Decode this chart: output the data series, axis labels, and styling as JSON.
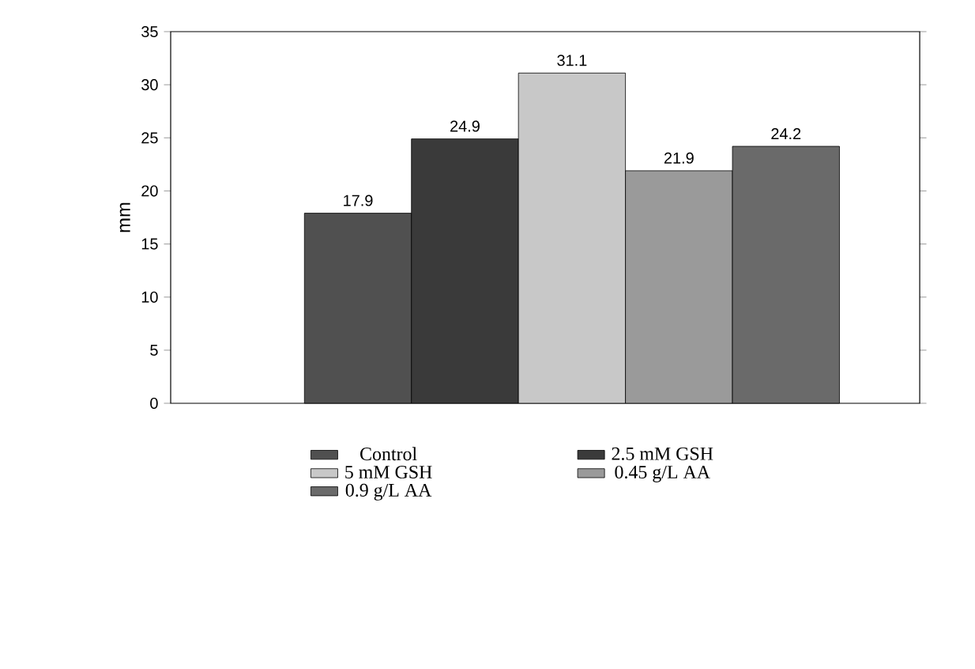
{
  "chart_data": {
    "type": "bar",
    "ylabel": "mm",
    "categories": [
      null
    ],
    "series": [
      {
        "name": "Control",
        "color": "#505050",
        "values": [
          17.9
        ]
      },
      {
        "name": "2.5 mM GSH",
        "color": "#3a3a3a",
        "values": [
          24.9
        ]
      },
      {
        "name": "5 mM GSH",
        "color": "#c8c8c8",
        "values": [
          31.1
        ]
      },
      {
        "name": "0.45 g/L AA",
        "color": "#9a9a9a",
        "values": [
          21.9
        ]
      },
      {
        "name": "0.9 g/L AA",
        "color": "#6a6a6a",
        "values": [
          24.2
        ]
      }
    ],
    "ylim": [
      0,
      35
    ],
    "yticks": [
      0,
      5,
      10,
      15,
      20,
      25,
      30,
      35
    ],
    "data_labels": true,
    "legend": "bottom",
    "grid": false
  }
}
